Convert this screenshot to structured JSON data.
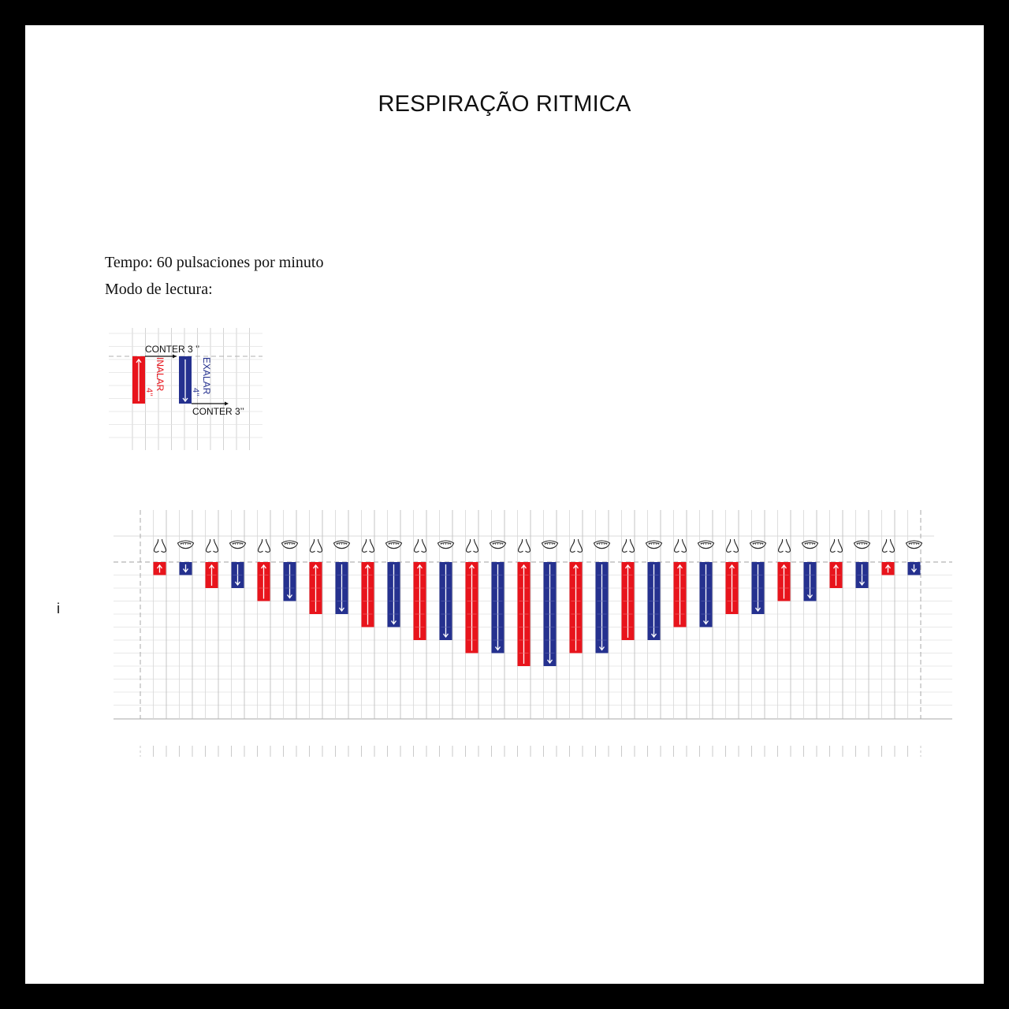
{
  "title": "RESPIRAÇÃO RITMICA",
  "tempo_line": "Tempo: 60 pulsaciones por minuto",
  "mode_line": "Modo de lectura:",
  "stray_char": "i",
  "legend": {
    "hold_top": "CONTER 3 ’’",
    "inhale_label": "INALAR",
    "inhale_count": "4’’",
    "exhale_label": "EXALAR",
    "exhale_count": "4’’",
    "hold_bottom": "CONTER 3’’"
  },
  "colors": {
    "inhale": "#e8141c",
    "exhale": "#25318f",
    "grid": "#c8c8c8",
    "frame": "#000000"
  },
  "icons": {
    "inhale": "nose-icon",
    "exhale": "mouth-icon"
  },
  "sequence_beats": [
    1,
    2,
    3,
    4,
    5,
    6,
    7,
    8,
    7,
    6,
    5,
    4,
    3,
    2,
    1
  ]
}
